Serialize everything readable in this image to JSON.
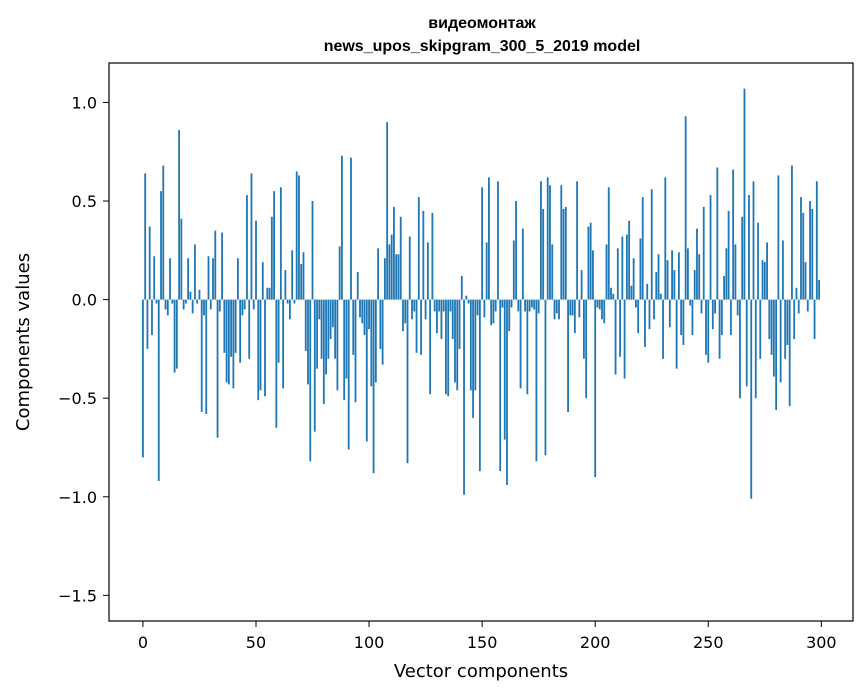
{
  "chart_data": {
    "type": "bar",
    "title": "видеомонтаж",
    "subtitle": "news_upos_skipgram_300_5_2019 model",
    "xlabel": "Vector components",
    "ylabel": "Components values",
    "xlim": [
      -15,
      314
    ],
    "ylim": [
      -1.63,
      1.2
    ],
    "xticks": [
      0,
      50,
      100,
      150,
      200,
      250,
      300
    ],
    "xtick_labels": [
      "0",
      "50",
      "100",
      "150",
      "200",
      "250",
      "300"
    ],
    "yticks": [
      1.0,
      0.5,
      0.0,
      -0.5,
      -1.0,
      -1.5
    ],
    "ytick_labels": [
      "1.0",
      "0.5",
      "0.0",
      "−0.5",
      "−1.0",
      "−1.5"
    ],
    "bar_color": "#1f77b4",
    "grid": false,
    "categories_note": "component index 0..299",
    "values": [
      -0.8,
      0.64,
      -0.25,
      0.37,
      -0.18,
      0.22,
      -0.02,
      -0.92,
      0.55,
      0.68,
      -0.05,
      -0.08,
      0.21,
      -0.02,
      -0.37,
      -0.35,
      0.86,
      0.41,
      -0.05,
      -0.02,
      0.21,
      0.04,
      -0.07,
      0.28,
      -0.02,
      0.05,
      -0.57,
      -0.08,
      -0.58,
      0.22,
      -0.05,
      0.21,
      0.35,
      -0.7,
      -0.06,
      0.34,
      -0.27,
      -0.42,
      -0.43,
      -0.29,
      -0.45,
      -0.27,
      0.21,
      -0.32,
      -0.08,
      -0.05,
      0.53,
      -0.3,
      0.64,
      -0.05,
      0.4,
      -0.51,
      -0.46,
      0.19,
      -0.49,
      0.06,
      0.06,
      0.42,
      0.55,
      -0.65,
      -0.32,
      0.57,
      -0.45,
      0.15,
      -0.02,
      -0.1,
      0.25,
      -0.02,
      0.65,
      0.63,
      0.18,
      0.24,
      -0.26,
      -0.43,
      -0.82,
      0.5,
      -0.67,
      -0.35,
      -0.1,
      -0.3,
      -0.53,
      -0.38,
      -0.3,
      -0.2,
      -0.14,
      -0.3,
      -0.46,
      0.27,
      0.73,
      -0.51,
      -0.4,
      -0.76,
      0.72,
      -0.28,
      -0.52,
      0.14,
      -0.09,
      -0.12,
      -0.18,
      -0.72,
      -0.15,
      -0.44,
      -0.88,
      -0.42,
      0.26,
      -0.25,
      -0.33,
      0.21,
      0.9,
      0.28,
      0.33,
      0.47,
      0.23,
      0.23,
      0.42,
      -0.16,
      -0.12,
      -0.83,
      0.32,
      -0.1,
      -0.06,
      -0.27,
      0.52,
      -0.28,
      0.45,
      -0.1,
      0.29,
      -0.48,
      0.44,
      -0.06,
      -0.17,
      -0.06,
      -0.2,
      -0.06,
      -0.48,
      -0.49,
      -0.06,
      -0.2,
      -0.42,
      -0.46,
      -0.25,
      0.12,
      -0.99,
      0.02,
      -0.02,
      -0.46,
      -0.6,
      -0.46,
      -0.08,
      -0.87,
      0.57,
      -0.09,
      0.29,
      0.62,
      -0.13,
      -0.12,
      -0.06,
      0.6,
      -0.87,
      -0.04,
      -0.71,
      -0.94,
      -0.16,
      -0.04,
      0.3,
      0.5,
      -0.06,
      -0.45,
      0.36,
      -0.06,
      -0.48,
      -0.06,
      -0.04,
      -0.05,
      -0.82,
      -0.07,
      0.6,
      0.46,
      -0.79,
      0.62,
      0.58,
      0.28,
      -0.1,
      -0.07,
      -0.1,
      0.58,
      0.46,
      0.47,
      -0.57,
      -0.08,
      -0.08,
      -0.17,
      0.6,
      -0.09,
      0.15,
      -0.3,
      -0.5,
      0.37,
      0.39,
      0.25,
      -0.9,
      -0.04,
      -0.05,
      -0.1,
      -0.12,
      0.28,
      0.57,
      0.06,
      0.03,
      -0.38,
      0.26,
      -0.29,
      0.32,
      -0.4,
      0.33,
      0.4,
      0.07,
      0.21,
      -0.04,
      -0.17,
      0.31,
      0.52,
      -0.24,
      0.08,
      -0.15,
      0.56,
      -0.1,
      0.14,
      0.23,
      0.03,
      -0.3,
      0.62,
      0.2,
      -0.14,
      0.25,
      0.15,
      -0.35,
      0.24,
      -0.18,
      -0.23,
      0.93,
      0.26,
      -0.03,
      -0.18,
      0.15,
      0.36,
      0.23,
      -0.07,
      0.47,
      -0.28,
      -0.32,
      0.53,
      -0.15,
      -0.07,
      0.67,
      -0.3,
      -0.18,
      0.12,
      0.26,
      0.45,
      -0.18,
      0.66,
      0.28,
      -0.08,
      -0.5,
      0.42,
      1.07,
      -0.44,
      0.53,
      -1.01,
      0.6,
      -0.5,
      0.39,
      -0.3,
      0.2,
      0.19,
      0.29,
      -0.2,
      -0.28,
      -0.39,
      -0.56,
      0.63,
      -0.42,
      0.3,
      -0.3,
      -0.23,
      -0.54,
      0.68,
      -0.2,
      0.06,
      -0.07,
      0.52,
      0.44,
      0.19,
      -0.06,
      0.5,
      0.46,
      -0.2,
      0.6,
      0.1
    ]
  }
}
